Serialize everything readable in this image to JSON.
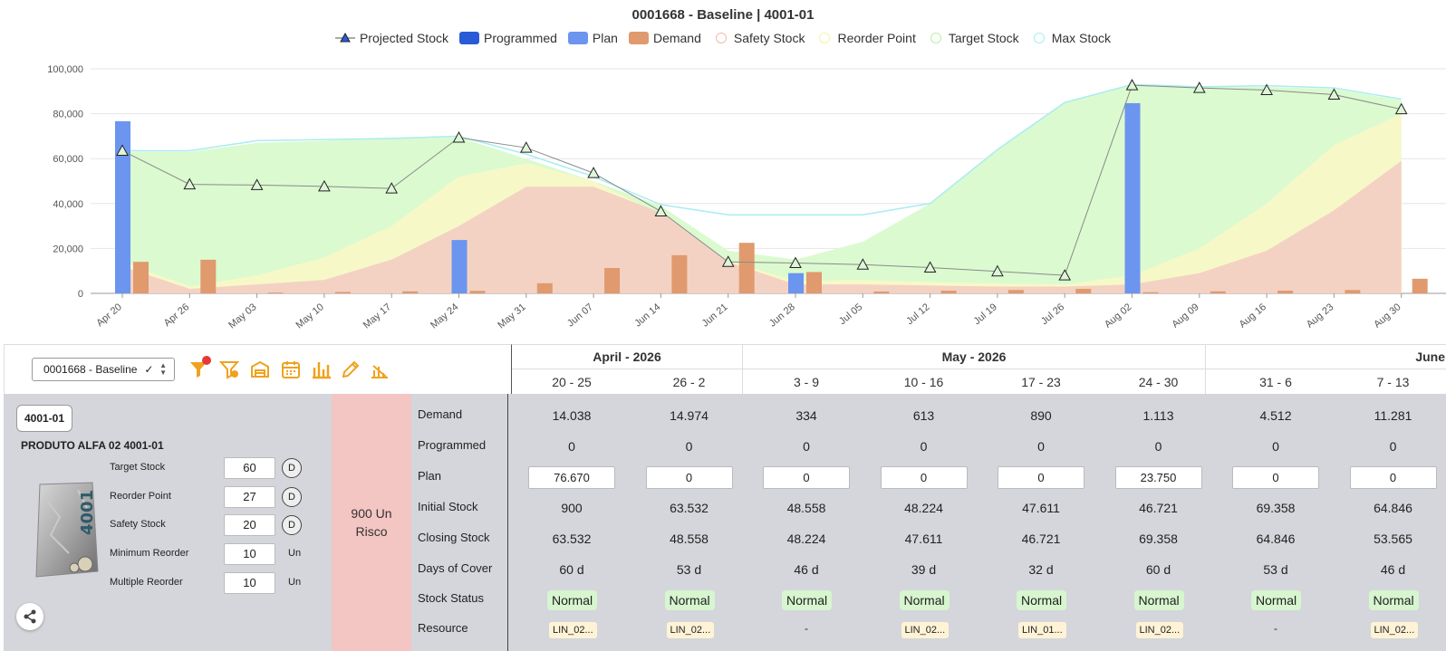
{
  "chart": {
    "title": "0001668 - Baseline | 4001-01",
    "legend": [
      {
        "label": "Projected Stock",
        "kind": "triangle",
        "color": "#555555"
      },
      {
        "label": "Programmed",
        "kind": "bar",
        "color": "#2a5bd7"
      },
      {
        "label": "Plan",
        "kind": "bar",
        "color": "#6b95ef"
      },
      {
        "label": "Demand",
        "kind": "bar",
        "color": "#e09a6e"
      },
      {
        "label": "Safety Stock",
        "kind": "circle",
        "color": "#f5b8a6"
      },
      {
        "label": "Reorder Point",
        "kind": "circle",
        "color": "#f6f5a0"
      },
      {
        "label": "Target Stock",
        "kind": "circle",
        "color": "#b8f0a5"
      },
      {
        "label": "Max Stock",
        "kind": "circle",
        "color": "#a5eef0"
      }
    ]
  },
  "chart_data": {
    "type": "bar",
    "title": "0001668 - Baseline | 4001-01",
    "xlabel": "",
    "ylabel": "",
    "ylim": [
      0,
      100000
    ],
    "yticks": [
      "0",
      "20,000",
      "40,000",
      "60,000",
      "80,000",
      "100,000"
    ],
    "categories": [
      "Apr 20",
      "Apr 26",
      "May 03",
      "May 10",
      "May 17",
      "May 24",
      "May 31",
      "Jun 07",
      "Jun 14",
      "Jun 21",
      "Jun 28",
      "Jul 05",
      "Jul 12",
      "Jul 19",
      "Jul 26",
      "Aug 02",
      "Aug 09",
      "Aug 16",
      "Aug 23",
      "Aug 30"
    ],
    "grid": true,
    "legend_position": "top",
    "series": [
      {
        "name": "Projected Stock",
        "type": "line",
        "values": [
          63532,
          48558,
          48224,
          47611,
          46721,
          69358,
          64846,
          53565,
          36500,
          14000,
          13500,
          12800,
          11500,
          9800,
          8000,
          92700,
          91500,
          90500,
          88500,
          82000
        ]
      },
      {
        "name": "Programmed",
        "type": "bar",
        "values": [
          0,
          0,
          0,
          0,
          0,
          0,
          0,
          0,
          0,
          0,
          0,
          0,
          0,
          0,
          0,
          0,
          0,
          0,
          0,
          0
        ]
      },
      {
        "name": "Plan",
        "type": "bar",
        "values": [
          76670,
          0,
          0,
          0,
          0,
          23750,
          0,
          0,
          0,
          0,
          9000,
          0,
          0,
          0,
          0,
          84700,
          0,
          0,
          0,
          0
        ]
      },
      {
        "name": "Demand",
        "type": "bar",
        "values": [
          14038,
          14974,
          334,
          613,
          890,
          1113,
          4512,
          11281,
          17000,
          22500,
          9500,
          800,
          1200,
          1500,
          2000,
          500,
          900,
          1200,
          1500,
          6500
        ]
      },
      {
        "name": "Safety Stock",
        "type": "area",
        "values": [
          12000,
          2000,
          4000,
          6000,
          15000,
          30000,
          47500,
          47500,
          36000,
          14000,
          4000,
          4000,
          3500,
          3000,
          3000,
          4000,
          9000,
          19000,
          37000,
          59000
        ]
      },
      {
        "name": "Reorder Point",
        "type": "area",
        "values": [
          14000,
          3000,
          8000,
          16000,
          30000,
          52000,
          58000,
          50000,
          35000,
          14500,
          5500,
          6000,
          5000,
          4500,
          4000,
          8000,
          20000,
          40000,
          66000,
          80000
        ]
      },
      {
        "name": "Target Stock",
        "type": "area",
        "values": [
          63000,
          63000,
          67000,
          68000,
          69000,
          69500,
          60000,
          50000,
          39000,
          19000,
          15000,
          23000,
          40000,
          64000,
          85000,
          93000,
          92000,
          92000,
          91000,
          86000
        ]
      },
      {
        "name": "Max Stock",
        "type": "line",
        "values": [
          63500,
          63500,
          68000,
          68500,
          69000,
          70000,
          62000,
          52000,
          39500,
          35000,
          35000,
          35000,
          40000,
          64000,
          85000,
          93000,
          92000,
          92500,
          91500,
          86500
        ]
      }
    ]
  },
  "toolbar": {
    "scenario": "0001668 - Baseline",
    "icons": [
      "filter-icon",
      "filter-clear-icon",
      "warehouse-icon",
      "calendar-icon",
      "bar-chart-icon",
      "pencil-icon",
      "chart-settings-icon"
    ]
  },
  "header": {
    "months": [
      "April - 2026",
      "May - 2026",
      "June"
    ],
    "weeks": [
      "20 - 25",
      "26 - 2",
      "3 - 9",
      "10 - 16",
      "17 - 23",
      "24 - 30",
      "31 - 6",
      "7 - 13"
    ]
  },
  "product": {
    "code": "4001-01",
    "name": "PRODUTO ALFA 02 4001-01",
    "image_text": "4001",
    "params": [
      {
        "label": "Target Stock",
        "value": "60",
        "unit": "D"
      },
      {
        "label": "Reorder Point",
        "value": "27",
        "unit": "D"
      },
      {
        "label": "Safety Stock",
        "value": "20",
        "unit": "D"
      },
      {
        "label": "Minimum Reorder",
        "value": "10",
        "unit": "Un"
      },
      {
        "label": "Multiple Reorder",
        "value": "10",
        "unit": "Un"
      }
    ],
    "risk_value": "900 Un",
    "risk_label": "Risco"
  },
  "rows": {
    "labels": [
      "Demand",
      "Programmed",
      "Plan",
      "Initial Stock",
      "Closing Stock",
      "Days of Cover",
      "Stock Status",
      "Resource"
    ],
    "demand": [
      "14.038",
      "14.974",
      "334",
      "613",
      "890",
      "1.113",
      "4.512",
      "11.281"
    ],
    "programmed": [
      "0",
      "0",
      "0",
      "0",
      "0",
      "0",
      "0",
      "0"
    ],
    "plan": [
      "76.670",
      "0",
      "0",
      "0",
      "0",
      "23.750",
      "0",
      "0"
    ],
    "initial_stock": [
      "900",
      "63.532",
      "48.558",
      "48.224",
      "47.611",
      "46.721",
      "69.358",
      "64.846"
    ],
    "closing_stock": [
      "63.532",
      "48.558",
      "48.224",
      "47.611",
      "46.721",
      "69.358",
      "64.846",
      "53.565"
    ],
    "days_of_cover": [
      "60 d",
      "53 d",
      "46 d",
      "39 d",
      "32 d",
      "60 d",
      "53 d",
      "46 d"
    ],
    "stock_status": [
      "Normal",
      "Normal",
      "Normal",
      "Normal",
      "Normal",
      "Normal",
      "Normal",
      "Normal"
    ],
    "resource": [
      "LIN_02...",
      "LIN_02...",
      "-",
      "LIN_02...",
      "LIN_01...",
      "LIN_02...",
      "-",
      "LIN_02..."
    ]
  }
}
